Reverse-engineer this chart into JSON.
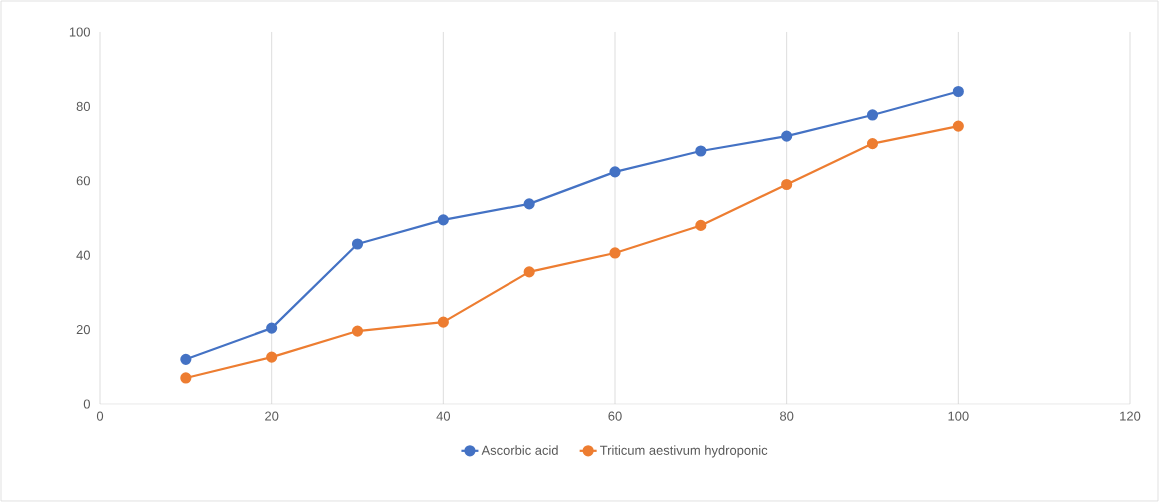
{
  "chart_data": {
    "type": "line",
    "x": [
      10,
      20,
      30,
      40,
      50,
      60,
      70,
      80,
      90,
      100
    ],
    "series": [
      {
        "name": "Ascorbic acid",
        "color": "#4472c4",
        "values": [
          12,
          20.4,
          43,
          49.5,
          53.8,
          62.4,
          68,
          72,
          77.7,
          84
        ]
      },
      {
        "name": "Triticum aestivum hydroponic",
        "color": "#ed7d31",
        "values": [
          7,
          12.6,
          19.6,
          22,
          35.5,
          40.6,
          48,
          59,
          70,
          74.7
        ]
      }
    ],
    "xlim": [
      0,
      120
    ],
    "xticks": [
      0,
      20,
      40,
      60,
      80,
      100,
      120
    ],
    "ylim": [
      0,
      100
    ],
    "yticks": [
      0,
      20,
      40,
      60,
      80,
      100
    ],
    "grid": "x",
    "legend": "bottom",
    "marker": "circle",
    "line_style": "solid"
  }
}
